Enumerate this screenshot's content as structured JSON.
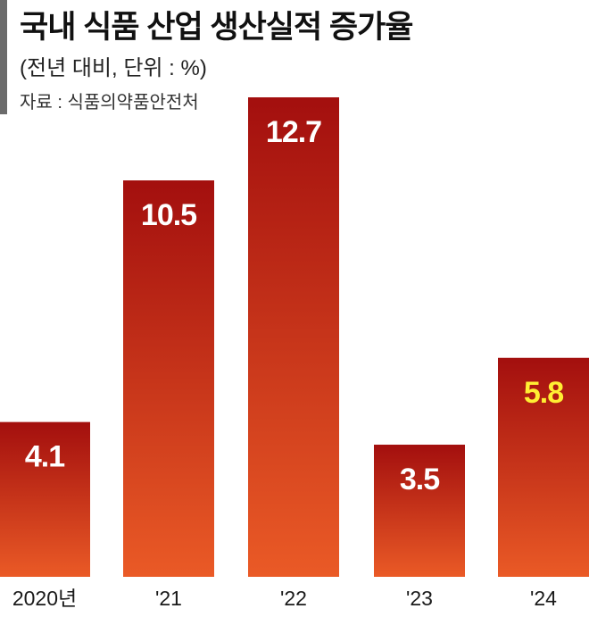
{
  "title": "국내 식품 산업 생산실적 증가율",
  "subtitle": "(전년 대비, 단위 : %)",
  "source": "자료 : 식품의약품안전처",
  "colors": {
    "bar_top": "#a30f0e",
    "bar_bottom": "#ea5a26",
    "label_default": "#ffffff",
    "label_highlight": "#ffee33",
    "accent_bar": "#6b6b6b"
  },
  "chart_data": {
    "type": "bar",
    "categories": [
      "2020년",
      "'21",
      "'22",
      "'23",
      "'24"
    ],
    "values": [
      4.1,
      10.5,
      12.7,
      3.5,
      5.8
    ],
    "data_labels": [
      "4.1",
      "10.5",
      "12.7",
      "3.5",
      "5.8"
    ],
    "highlight_index": 4,
    "title": "국내 식품 산업 생산실적 증가율",
    "xlabel": "",
    "ylabel": "",
    "ylim": [
      0,
      12.7
    ],
    "grid": false,
    "legend": "none"
  }
}
